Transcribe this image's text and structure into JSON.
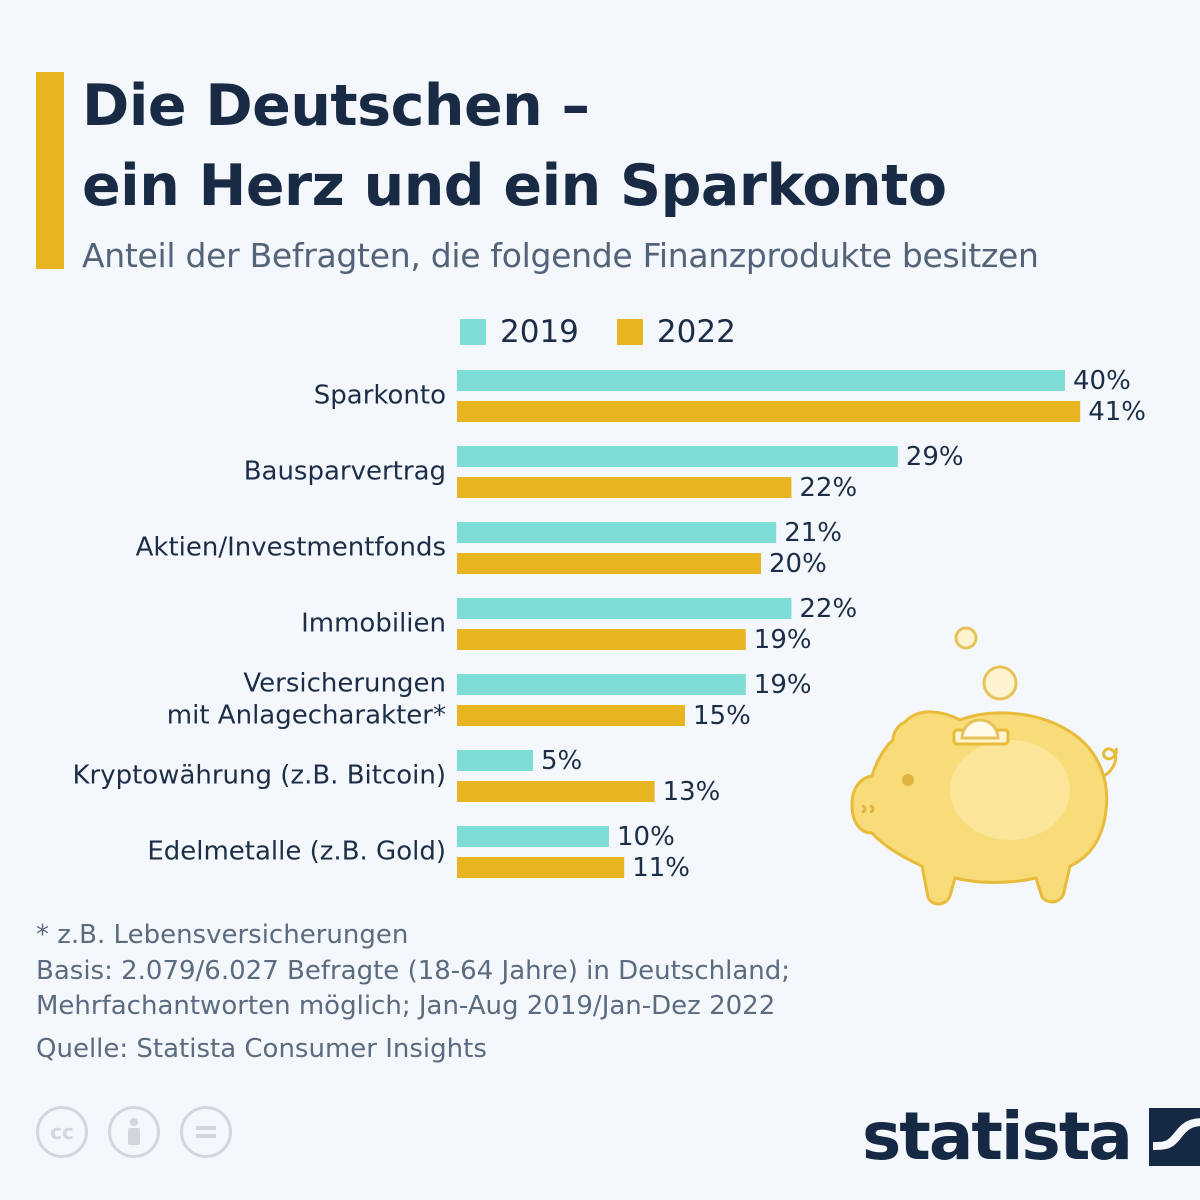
{
  "title_line1": "Die Deutschen –",
  "title_line2": "ein Herz und ein Sparkonto",
  "subtitle": "Anteil der Befragten, die folgende Finanzprodukte besitzen",
  "colors": {
    "accent": "#e9b422",
    "series_2019": "#7fddd7",
    "series_2022": "#e9b422",
    "text": "#1c2e47"
  },
  "legend": [
    {
      "label": "2019",
      "color": "#7fddd7"
    },
    {
      "label": "2022",
      "color": "#e9b422"
    }
  ],
  "chart_data": {
    "type": "bar",
    "orientation": "horizontal",
    "categories": [
      [
        "Sparkonto"
      ],
      [
        "Bausparvertrag"
      ],
      [
        "Aktien/Investmentfonds"
      ],
      [
        "Immobilien"
      ],
      [
        "Versicherungen",
        "mit Anlagecharakter*"
      ],
      [
        "Kryptowährung (z.B. Bitcoin)"
      ],
      [
        "Edelmetalle (z.B. Gold)"
      ]
    ],
    "series": [
      {
        "name": "2019",
        "values": [
          40,
          29,
          21,
          22,
          19,
          5,
          10
        ],
        "labels": [
          "40%",
          "29%",
          "21%",
          "22%",
          "19%",
          "5%",
          "10%"
        ]
      },
      {
        "name": "2022",
        "values": [
          41,
          22,
          20,
          19,
          15,
          13,
          11
        ],
        "labels": [
          "41%",
          "22%",
          "20%",
          "19%",
          "15%",
          "13%",
          "11%"
        ]
      }
    ],
    "value_unit": "%",
    "xlim": [
      0,
      41
    ],
    "grid": false,
    "legend_position": "top"
  },
  "notes": {
    "footnote": "* z.B. Lebensversicherungen",
    "basis_line1": "Basis: 2.079/6.027 Befragte (18-64 Jahre) in Deutschland;",
    "basis_line2": "Mehrfachantworten möglich; Jan-Aug 2019/Jan-Dez 2022",
    "source": "Quelle: Statista Consumer Insights"
  },
  "license_icons": [
    "creative-commons-icon",
    "attribution-icon",
    "no-derivatives-icon"
  ],
  "cc_text": "cc",
  "logo_text": "statista"
}
